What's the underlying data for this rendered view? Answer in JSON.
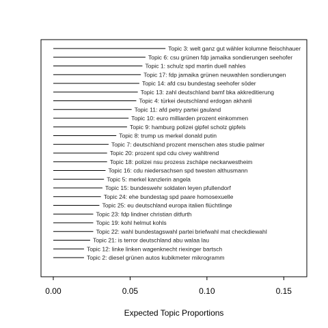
{
  "chart_data": {
    "type": "bar",
    "orientation": "horizontal",
    "title": "",
    "xlabel": "Expected Topic Proportions",
    "ylabel": "",
    "xlim": [
      -0.008,
      0.165
    ],
    "xticks": [
      0.0,
      0.05,
      0.1,
      0.15
    ],
    "xtick_labels": [
      "0.00",
      "0.05",
      "0.10",
      "0.15"
    ],
    "grid": false,
    "legend": "none",
    "line_color": "#000000",
    "topics": [
      {
        "label": "Topic 3: welt ganz gut wähler kolumne fleischhauer",
        "value": 0.073
      },
      {
        "label": "Topic 6: csu grünen fdp jamaika sondierungen seehofer",
        "value": 0.06
      },
      {
        "label": "Topic 1: schulz spd martin duell nahles",
        "value": 0.058
      },
      {
        "label": "Topic 17: fdp jamaika grünen neuwahlen sondierungen",
        "value": 0.057
      },
      {
        "label": "Topic 14: afd csu bundestag seehofer söder",
        "value": 0.056
      },
      {
        "label": "Topic 13: zahl deutschland bamf bka akkreditierung",
        "value": 0.055
      },
      {
        "label": "Topic 4: türkei deutschland erdogan akhanli",
        "value": 0.054
      },
      {
        "label": "Topic 11: afd petry partei gauland",
        "value": 0.051
      },
      {
        "label": "Topic 10: euro milliarden prozent einkommen",
        "value": 0.049
      },
      {
        "label": "Topic 9: hamburg polizei gipfel scholz gipfels",
        "value": 0.048
      },
      {
        "label": "Topic 8: trump us merkel donald putin",
        "value": 0.041
      },
      {
        "label": "Topic 7: deutschland prozent menschen ates studie palmer",
        "value": 0.036
      },
      {
        "label": "Topic 20: prozent spd cdu civey wahltrend",
        "value": 0.035
      },
      {
        "label": "Topic 18: polizei nsu prozess zschäpe neckarwestheim",
        "value": 0.035
      },
      {
        "label": "Topic 16: cdu niedersachsen spd twesten althusmann",
        "value": 0.034
      },
      {
        "label": "Topic 5: merkel kanzlerin angela",
        "value": 0.033
      },
      {
        "label": "Topic 15: bundeswehr soldaten leyen pfullendorf",
        "value": 0.032
      },
      {
        "label": "Topic 24: ehe bundestag spd paare homosexuelle",
        "value": 0.031
      },
      {
        "label": "Topic 25: eu deutschland europa italien flüchtlinge",
        "value": 0.03
      },
      {
        "label": "Topic 23: fdp lindner christian ditfurth",
        "value": 0.026
      },
      {
        "label": "Topic 19: kohl helmut kohls",
        "value": 0.026
      },
      {
        "label": "Topic 22: wahl bundestagswahl partei briefwahl mat checkdiewahl",
        "value": 0.026
      },
      {
        "label": "Topic 21: is terror deutschland abu walaa lau",
        "value": 0.024
      },
      {
        "label": "Topic 12: linke linken wagenknecht riexinger bartsch",
        "value": 0.02
      },
      {
        "label": "Topic 2: diesel grünen autos kubikmeter mikrogramm",
        "value": 0.02
      }
    ]
  }
}
